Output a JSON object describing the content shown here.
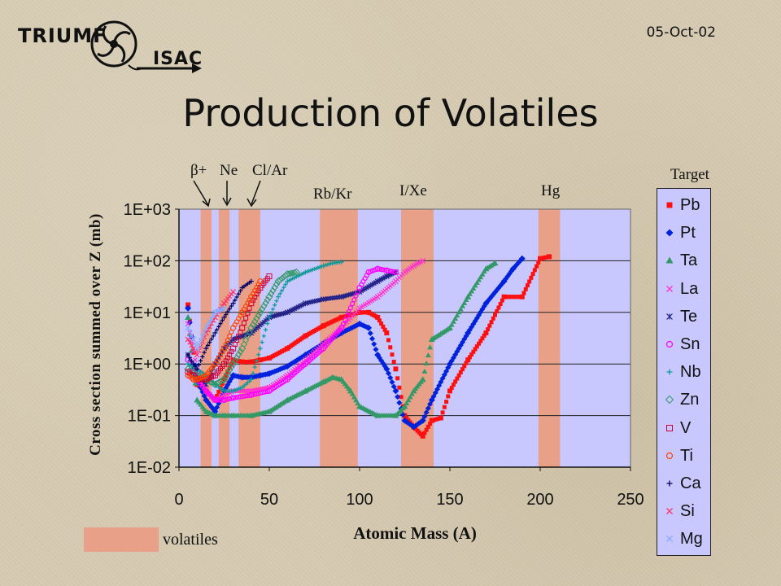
{
  "header": {
    "logo_primary": "TRIUMF",
    "logo_secondary": "ISAC",
    "date": "05-Oct-02",
    "title": "Production of Volatiles"
  },
  "annotations": {
    "beta_plus": "β+",
    "ne": "Ne",
    "cl_ar": "Cl/Ar",
    "rb_kr": "Rb/Kr",
    "i_xe": "I/Xe",
    "hg": "Hg"
  },
  "legend": {
    "title": "Target",
    "items": [
      {
        "label": "Pb",
        "color": "#ff1010",
        "marker": "square"
      },
      {
        "label": "Pt",
        "color": "#0022dd",
        "marker": "diamond"
      },
      {
        "label": "Ta",
        "color": "#339966",
        "marker": "triangle"
      },
      {
        "label": "La",
        "color": "#ff33cc",
        "marker": "x"
      },
      {
        "label": "Te",
        "color": "#222288",
        "marker": "asterisk"
      },
      {
        "label": "Sn",
        "color": "#ff00ff",
        "marker": "circle"
      },
      {
        "label": "Nb",
        "color": "#119999",
        "marker": "plus"
      },
      {
        "label": "Zn",
        "color": "#339966",
        "marker": "diamond-open"
      },
      {
        "label": "V",
        "color": "#cc0033",
        "marker": "square-open"
      },
      {
        "label": "Ti",
        "color": "#ff4400",
        "marker": "circle"
      },
      {
        "label": "Ca",
        "color": "#000066",
        "marker": "plus"
      },
      {
        "label": "Si",
        "color": "#ff3366",
        "marker": "x"
      },
      {
        "label": "Mg",
        "color": "#88aaff",
        "marker": "x"
      }
    ]
  },
  "volatiles_label": "volatiles",
  "chart_data": {
    "type": "scatter",
    "xlabel": "Atomic Mass (A)",
    "ylabel": "Cross section summed over Z (mb)",
    "xlim": [
      0,
      250
    ],
    "ylim": [
      0.01,
      1000
    ],
    "yscale": "log",
    "x_ticks": [
      0,
      50,
      100,
      150,
      200,
      250
    ],
    "y_ticks": [
      "1E-02",
      "1E-01",
      "1E+00",
      "1E+01",
      "1E+02",
      "1E+03"
    ],
    "y_tick_values": [
      0.01,
      0.1,
      1,
      10,
      100,
      1000
    ],
    "grid": "horizontal",
    "legend_placement": "right",
    "volatile_bands": [
      [
        12,
        18
      ],
      [
        22,
        28
      ],
      [
        33,
        45
      ],
      [
        78,
        99
      ],
      [
        123,
        141
      ],
      [
        199,
        211
      ]
    ],
    "series": [
      {
        "name": "Pb",
        "x": [
          5,
          10,
          15,
          20,
          25,
          30,
          35,
          40,
          45,
          50,
          60,
          70,
          80,
          90,
          100,
          105,
          110,
          115,
          120,
          125,
          130,
          135,
          140,
          145,
          150,
          160,
          170,
          180,
          190,
          200,
          205
        ],
        "y": [
          14,
          0.4,
          0.3,
          0.2,
          0.5,
          1.2,
          1.1,
          1.1,
          1.2,
          1.3,
          2.0,
          3.5,
          5.5,
          8,
          10,
          10,
          8,
          4,
          0.8,
          0.1,
          0.06,
          0.04,
          0.08,
          0.09,
          0.3,
          1.2,
          4,
          20,
          20,
          110,
          120
        ]
      },
      {
        "name": "Pt",
        "x": [
          5,
          10,
          15,
          20,
          25,
          30,
          35,
          40,
          45,
          50,
          60,
          70,
          80,
          90,
          100,
          105,
          110,
          115,
          120,
          125,
          130,
          135,
          140,
          150,
          160,
          170,
          180,
          185,
          190
        ],
        "y": [
          12,
          0.5,
          0.2,
          0.12,
          0.3,
          0.6,
          0.55,
          0.55,
          0.6,
          0.65,
          0.9,
          1.5,
          2.5,
          4,
          6,
          5,
          1.5,
          0.8,
          0.3,
          0.08,
          0.06,
          0.08,
          0.2,
          1.0,
          4,
          15,
          40,
          70,
          110
        ]
      },
      {
        "name": "Ta",
        "x": [
          5,
          10,
          15,
          20,
          25,
          30,
          40,
          50,
          60,
          70,
          80,
          85,
          90,
          95,
          100,
          110,
          120,
          125,
          130,
          135,
          140,
          150,
          160,
          170,
          175
        ],
        "y": [
          8,
          0.2,
          0.12,
          0.1,
          0.1,
          0.1,
          0.1,
          0.12,
          0.2,
          0.3,
          0.45,
          0.55,
          0.5,
          0.3,
          0.15,
          0.1,
          0.1,
          0.15,
          0.3,
          0.5,
          3,
          5,
          20,
          70,
          90
        ]
      },
      {
        "name": "La",
        "x": [
          5,
          10,
          15,
          20,
          25,
          30,
          40,
          50,
          60,
          70,
          80,
          90,
          100,
          110,
          120,
          125,
          130,
          135
        ],
        "y": [
          6,
          0.8,
          0.3,
          0.2,
          0.25,
          0.3,
          0.3,
          0.35,
          0.6,
          1.2,
          2.5,
          5,
          12,
          20,
          40,
          60,
          80,
          100
        ]
      },
      {
        "name": "Te",
        "x": [
          5,
          10,
          15,
          20,
          25,
          30,
          40,
          50,
          60,
          70,
          80,
          90,
          100,
          110,
          115,
          120
        ],
        "y": [
          1.5,
          0.6,
          0.4,
          1,
          2,
          3,
          4,
          8,
          10,
          15,
          18,
          20,
          25,
          40,
          50,
          60
        ]
      },
      {
        "name": "Sn",
        "x": [
          5,
          10,
          15,
          20,
          25,
          30,
          40,
          50,
          60,
          70,
          80,
          90,
          100,
          105,
          110,
          115,
          120
        ],
        "y": [
          1.2,
          0.5,
          0.3,
          0.2,
          0.2,
          0.22,
          0.25,
          0.3,
          0.5,
          1,
          2,
          5,
          30,
          60,
          70,
          65,
          60
        ]
      },
      {
        "name": "Nb",
        "x": [
          5,
          10,
          15,
          20,
          25,
          30,
          35,
          40,
          45,
          50,
          55,
          60,
          70,
          80,
          85,
          90
        ],
        "y": [
          1.0,
          0.8,
          0.6,
          0.4,
          0.3,
          0.3,
          0.35,
          0.5,
          2,
          8,
          20,
          40,
          60,
          80,
          90,
          95
        ]
      },
      {
        "name": "Zn",
        "x": [
          5,
          10,
          15,
          20,
          25,
          30,
          35,
          40,
          45,
          50,
          55,
          60,
          65
        ],
        "y": [
          0.8,
          0.6,
          0.5,
          0.4,
          0.5,
          1,
          2,
          5,
          10,
          20,
          40,
          55,
          60
        ]
      },
      {
        "name": "V",
        "x": [
          5,
          8,
          10,
          15,
          20,
          25,
          30,
          35,
          40,
          45,
          50
        ],
        "y": [
          0.7,
          0.6,
          0.5,
          0.5,
          0.6,
          1,
          2,
          5,
          15,
          30,
          50
        ]
      },
      {
        "name": "Ti",
        "x": [
          5,
          8,
          10,
          15,
          20,
          25,
          30,
          35,
          40,
          45
        ],
        "y": [
          0.6,
          0.5,
          0.5,
          0.6,
          1,
          2,
          5,
          10,
          20,
          40
        ]
      },
      {
        "name": "Ca",
        "x": [
          5,
          8,
          10,
          15,
          20,
          25,
          30,
          35,
          40
        ],
        "y": [
          1.5,
          1,
          0.8,
          2,
          4,
          8,
          15,
          30,
          40
        ]
      },
      {
        "name": "Si",
        "x": [
          5,
          8,
          10,
          15,
          20,
          25,
          30
        ],
        "y": [
          3,
          2,
          1.5,
          4,
          8,
          15,
          25
        ]
      },
      {
        "name": "Mg",
        "x": [
          5,
          8,
          10,
          15,
          20,
          25
        ],
        "y": [
          5,
          3,
          2,
          5,
          10,
          12
        ]
      }
    ]
  }
}
